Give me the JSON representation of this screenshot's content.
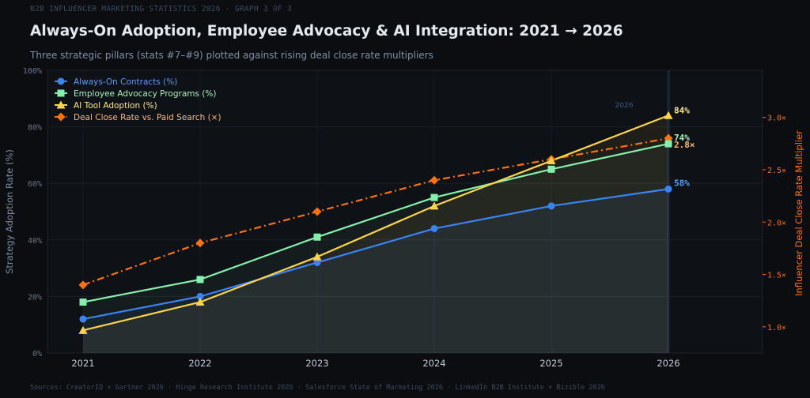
{
  "header": {
    "kicker": "B2B INFLUENCER MARKETING STATISTICS 2026  ·  GRAPH 3 OF 3",
    "title": "Always-On Adoption, Employee Advocacy & AI Integration: 2021 → 2026",
    "subtitle": "Three strategic pillars (stats #7–#9) plotted against rising deal close rate multipliers"
  },
  "footer": {
    "sources": "Sources: CreatorIQ × Gartner 2026  ·  Hinge Research Institute 2026  ·  Salesforce State of Marketing 2026  ·  LinkedIn B2B Institute × Bizible 2026"
  },
  "colors": {
    "background": "#0b0d11",
    "plot_background": "#0e1116",
    "always_on": "#3b82f6",
    "advocacy": "#86efac",
    "ai": "#fcd34d",
    "close_rate": "#f97316"
  },
  "chart_data": {
    "type": "line",
    "x": [
      "2021",
      "2022",
      "2023",
      "2024",
      "2025",
      "2026"
    ],
    "ylabel": "Strategy Adoption Rate (%)",
    "y2label": "Influencer Deal Close Rate Multiplier",
    "ylim": [
      0,
      100
    ],
    "y_ticks": [
      0,
      20,
      40,
      60,
      80,
      100
    ],
    "y_tick_labels": [
      "0%",
      "20%",
      "40%",
      "60%",
      "80%",
      "100%"
    ],
    "y2lim": [
      0.75,
      3.45
    ],
    "y2_ticks": [
      1.0,
      1.5,
      2.0,
      2.5,
      3.0
    ],
    "y2_tick_labels": [
      "1.0×",
      "1.5×",
      "2.0×",
      "2.5×",
      "3.0×"
    ],
    "grid": true,
    "legend_position": "top-left",
    "highlight_label": "2026",
    "series": [
      {
        "name": "Always-On Contracts (%)",
        "axis": "left",
        "marker": "circle",
        "style": "solid",
        "values": [
          12,
          20,
          32,
          44,
          52,
          58
        ],
        "end_label": "58%"
      },
      {
        "name": "Employee Advocacy Programs (%)",
        "axis": "left",
        "marker": "square",
        "style": "solid",
        "values": [
          18,
          26,
          41,
          55,
          65,
          74
        ],
        "end_label": "74%"
      },
      {
        "name": "AI Tool Adoption (%)",
        "axis": "left",
        "marker": "triangle",
        "style": "solid",
        "values": [
          8,
          18,
          34,
          52,
          68,
          84
        ],
        "end_label": "84%"
      },
      {
        "name": "Deal Close Rate vs. Paid Search (×)",
        "axis": "right",
        "marker": "diamond",
        "style": "dashdot",
        "values": [
          1.4,
          1.8,
          2.1,
          2.4,
          2.6,
          2.8
        ],
        "end_label": "2.8×"
      }
    ]
  }
}
